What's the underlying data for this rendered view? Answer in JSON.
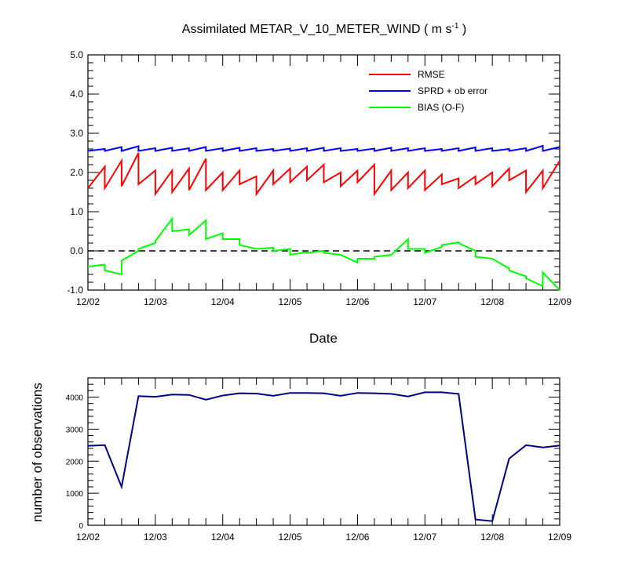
{
  "chart_data": [
    {
      "type": "line",
      "title_main": "Assimilated METAR_V_10_METER_WIND ( m s",
      "title_sup": "-1",
      "title_end": " )",
      "xlabel": "Date",
      "ylabel": "",
      "xlim": [
        0,
        7
      ],
      "ylim": [
        -1.0,
        5.0
      ],
      "yticks": [
        "5.0",
        "4.0",
        "3.0",
        "2.0",
        "1.0",
        "0.0",
        "-1.0"
      ],
      "ytick_values": [
        5,
        4,
        3,
        2,
        1,
        0,
        -1
      ],
      "xtick_labels": [
        "12/02",
        "12/03",
        "12/04",
        "12/05",
        "12/06",
        "12/07",
        "12/08",
        "12/09"
      ],
      "zero_line": "dashed",
      "legend_position": "top-right",
      "series": [
        {
          "name": "RMSE",
          "color": "#ff0000",
          "x": [
            0,
            0.25,
            0.25,
            0.5,
            0.5,
            0.75,
            0.75,
            1.0,
            1.0,
            1.25,
            1.25,
            1.5,
            1.5,
            1.75,
            1.75,
            2.0,
            2.0,
            2.25,
            2.25,
            2.5,
            2.5,
            2.75,
            2.75,
            3.0,
            3.0,
            3.25,
            3.25,
            3.5,
            3.5,
            3.75,
            3.75,
            4.0,
            4.0,
            4.25,
            4.25,
            4.5,
            4.5,
            4.75,
            4.75,
            5.0,
            5.0,
            5.25,
            5.25,
            5.5,
            5.5,
            5.75,
            5.75,
            6.0,
            6.0,
            6.25,
            6.25,
            6.5,
            6.5,
            6.75,
            6.75,
            7.0
          ],
          "values": [
            1.6,
            2.15,
            1.6,
            2.3,
            1.65,
            2.5,
            1.7,
            2.05,
            1.45,
            2.05,
            1.5,
            2.1,
            1.55,
            2.35,
            1.55,
            2.0,
            1.55,
            2.05,
            1.7,
            1.9,
            1.45,
            2.05,
            1.7,
            2.1,
            1.75,
            2.15,
            1.8,
            2.2,
            1.75,
            2.0,
            1.65,
            2.05,
            1.75,
            2.2,
            1.45,
            2.05,
            1.55,
            2.0,
            1.6,
            2.05,
            1.55,
            1.95,
            1.7,
            1.85,
            1.6,
            1.9,
            1.7,
            2.0,
            1.65,
            2.1,
            1.8,
            2.05,
            1.5,
            2.05,
            1.6,
            2.3
          ]
        },
        {
          "name": "SPRD + ob error",
          "color": "#0000ff",
          "x": [
            0,
            0.25,
            0.25,
            0.5,
            0.5,
            0.75,
            0.75,
            1.0,
            1.0,
            1.25,
            1.25,
            1.5,
            1.5,
            1.75,
            1.75,
            2.0,
            2.0,
            2.25,
            2.25,
            2.5,
            2.5,
            2.75,
            2.75,
            3.0,
            3.0,
            3.25,
            3.25,
            3.5,
            3.5,
            3.75,
            3.75,
            4.0,
            4.0,
            4.25,
            4.25,
            4.5,
            4.5,
            4.75,
            4.75,
            5.0,
            5.0,
            5.25,
            5.25,
            5.5,
            5.5,
            5.75,
            5.75,
            6.0,
            6.0,
            6.25,
            6.25,
            6.5,
            6.5,
            6.75,
            6.75,
            7.0
          ],
          "values": [
            2.55,
            2.6,
            2.55,
            2.65,
            2.55,
            2.67,
            2.55,
            2.62,
            2.55,
            2.63,
            2.55,
            2.62,
            2.55,
            2.65,
            2.55,
            2.62,
            2.55,
            2.63,
            2.55,
            2.62,
            2.55,
            2.6,
            2.55,
            2.61,
            2.55,
            2.62,
            2.55,
            2.63,
            2.55,
            2.62,
            2.55,
            2.6,
            2.55,
            2.61,
            2.55,
            2.63,
            2.55,
            2.62,
            2.55,
            2.62,
            2.55,
            2.6,
            2.55,
            2.62,
            2.55,
            2.64,
            2.55,
            2.62,
            2.55,
            2.6,
            2.55,
            2.62,
            2.55,
            2.68,
            2.55,
            2.65
          ]
        },
        {
          "name": "BIAS (O-F)",
          "color": "#00ff00",
          "x": [
            0,
            0.25,
            0.25,
            0.5,
            0.5,
            0.75,
            0.75,
            1.0,
            1.0,
            1.25,
            1.25,
            1.5,
            1.5,
            1.75,
            1.75,
            2.0,
            2.0,
            2.25,
            2.25,
            2.5,
            2.5,
            2.75,
            2.75,
            3.0,
            3.0,
            3.25,
            3.25,
            3.5,
            3.5,
            3.75,
            3.75,
            4.0,
            4.0,
            4.25,
            4.25,
            4.5,
            4.5,
            4.75,
            4.75,
            5.0,
            5.0,
            5.25,
            5.25,
            5.5,
            5.5,
            5.75,
            5.75,
            6.0,
            6.0,
            6.25,
            6.25,
            6.5,
            6.5,
            6.75,
            6.75,
            7.0
          ],
          "values": [
            -0.4,
            -0.35,
            -0.5,
            -0.6,
            -0.25,
            0.0,
            0.05,
            0.2,
            0.25,
            0.82,
            0.5,
            0.55,
            0.4,
            0.78,
            0.3,
            0.45,
            0.3,
            0.3,
            0.15,
            0.05,
            0.05,
            0.08,
            0.0,
            0.05,
            -0.1,
            -0.03,
            -0.05,
            0.0,
            -0.05,
            -0.1,
            -0.1,
            -0.3,
            -0.2,
            -0.2,
            -0.15,
            -0.1,
            -0.1,
            0.3,
            0.05,
            0.05,
            -0.05,
            0.1,
            0.15,
            0.22,
            0.2,
            0.0,
            -0.15,
            -0.2,
            -0.2,
            -0.45,
            -0.5,
            -0.65,
            -0.7,
            -0.9,
            -0.55,
            -1.0
          ]
        }
      ]
    },
    {
      "type": "line",
      "title": "",
      "xlabel": "",
      "ylabel": "number of observations",
      "xlim": [
        0,
        7
      ],
      "ylim": [
        0,
        4600
      ],
      "yticks": [
        "0",
        "1000",
        "2000",
        "3000",
        "4000"
      ],
      "ytick_values": [
        0,
        1000,
        2000,
        3000,
        4000
      ],
      "xtick_labels": [
        "12/02",
        "12/03",
        "12/04",
        "12/05",
        "12/06",
        "12/07",
        "12/08",
        "12/09"
      ],
      "series": [
        {
          "name": "number of observations",
          "color": "#000080",
          "x": [
            0,
            0.25,
            0.5,
            0.75,
            1.0,
            1.25,
            1.5,
            1.75,
            2.0,
            2.25,
            2.5,
            2.75,
            3.0,
            3.25,
            3.5,
            3.75,
            4.0,
            4.25,
            4.5,
            4.75,
            5.0,
            5.25,
            5.5,
            5.75,
            6.0,
            6.25,
            6.5,
            6.75,
            7.0
          ],
          "values": [
            2480,
            2500,
            1200,
            4030,
            4010,
            4080,
            4070,
            3920,
            4050,
            4120,
            4110,
            4040,
            4130,
            4130,
            4120,
            4040,
            4130,
            4120,
            4100,
            4020,
            4150,
            4150,
            4100,
            180,
            130,
            2080,
            2500,
            2430,
            2490
          ]
        }
      ]
    }
  ]
}
